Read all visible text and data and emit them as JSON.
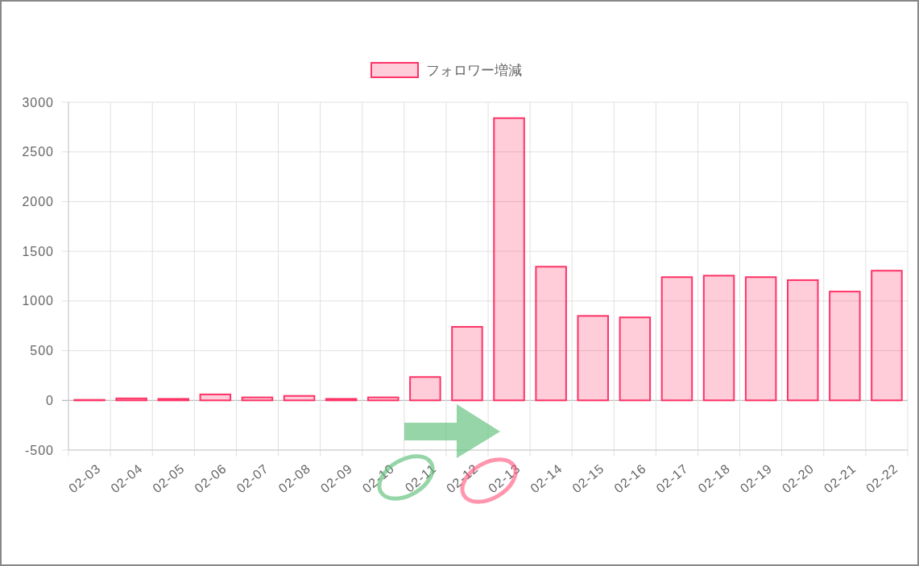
{
  "chart_data": {
    "type": "bar",
    "categories": [
      "02-03",
      "02-04",
      "02-05",
      "02-06",
      "02-07",
      "02-08",
      "02-09",
      "02-10",
      "02-11",
      "02-12",
      "02-13",
      "02-14",
      "02-15",
      "02-16",
      "02-17",
      "02-18",
      "02-19",
      "02-20",
      "02-21",
      "02-22"
    ],
    "series": [
      {
        "name": "フォロワー増減",
        "color": "#ff3366",
        "values": [
          5,
          20,
          15,
          60,
          30,
          45,
          15,
          30,
          235,
          740,
          2840,
          1345,
          850,
          835,
          1240,
          1255,
          1240,
          1210,
          1095,
          1305
        ]
      }
    ],
    "ylim": [
      -500,
      3000
    ],
    "yticks": [
      -500,
      0,
      500,
      1000,
      1500,
      2000,
      2500,
      3000
    ],
    "grid": true,
    "legend": "top"
  }
}
